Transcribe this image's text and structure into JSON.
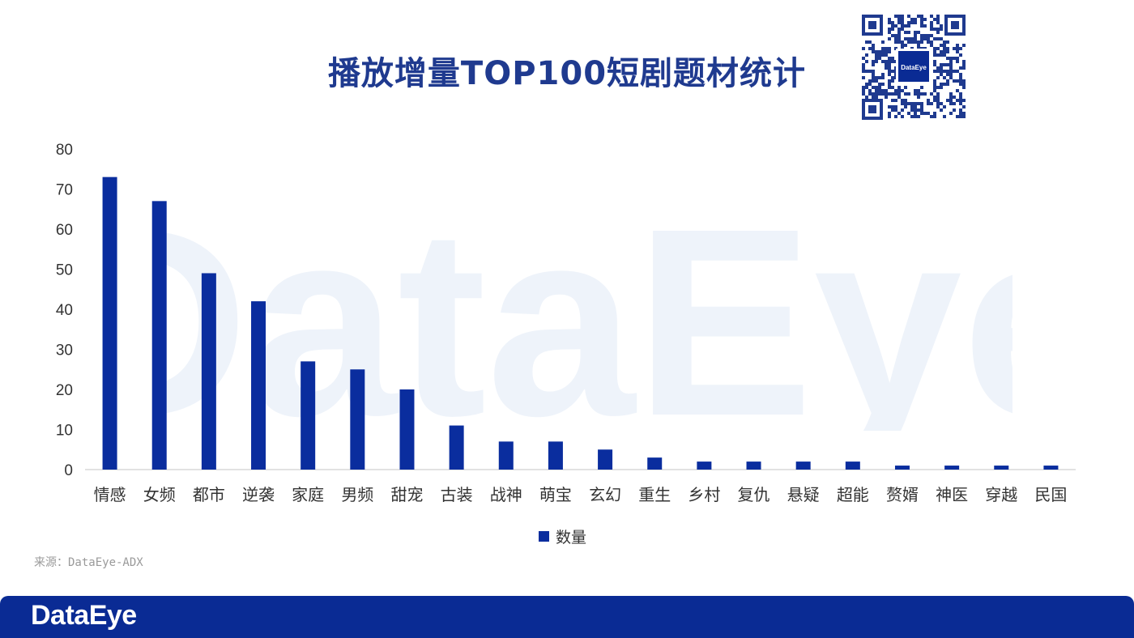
{
  "header": {
    "title": "播放增量TOP100短剧题材统计"
  },
  "qr": {
    "logo_text": "DataEye"
  },
  "watermark": {
    "text": "DataEye"
  },
  "chart_data": {
    "type": "bar",
    "categories": [
      "情感",
      "女频",
      "都市",
      "逆袭",
      "家庭",
      "男频",
      "甜宠",
      "古装",
      "战神",
      "萌宝",
      "玄幻",
      "重生",
      "乡村",
      "复仇",
      "悬疑",
      "超能",
      "赘婿",
      "神医",
      "穿越",
      "民国"
    ],
    "series": [
      {
        "name": "数量",
        "values": [
          73,
          67,
          49,
          42,
          27,
          25,
          20,
          11,
          7,
          7,
          5,
          3,
          2,
          2,
          2,
          2,
          1,
          1,
          1,
          1
        ]
      }
    ],
    "yticks": [
      0,
      10,
      20,
      30,
      40,
      50,
      60,
      70,
      80
    ],
    "ylim": [
      0,
      80
    ],
    "grid": false,
    "legend_position": "bottom",
    "bar_color": "#0a2d9e"
  },
  "legend": {
    "label": "数量"
  },
  "source": {
    "text": "来源：DataEye-ADX"
  },
  "footer": {
    "logo_text": "DataEye",
    "bg_color": "#0a2b94"
  }
}
